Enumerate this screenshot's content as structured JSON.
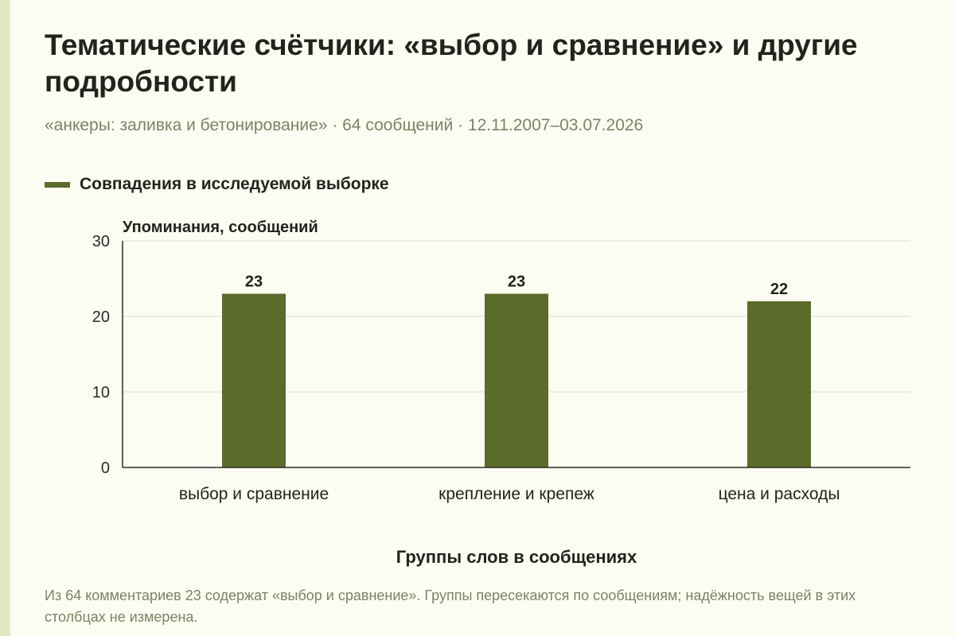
{
  "title": "Тематические счётчики: «выбор и сравнение» и другие подробности",
  "subtitle": "«анкеры: заливка и бетонирование» · 64 сообщений · 12.11.2007–03.07.2026",
  "footnote": "Из 64 комментариев 23 содержат «выбор и сравнение». Группы пересекаются по сообщениям; надёжность вещей в этих столбцах не измерена.",
  "colors": {
    "bar": "#5b6b2a",
    "grid": "#dadad0",
    "axis": "#2b2b26",
    "background": "#fdfcf2"
  },
  "chart_data": {
    "type": "bar",
    "categories": [
      "выбор и сравнение",
      "крепление и крепеж",
      "цена и расходы"
    ],
    "series": [
      {
        "name": "Совпадения в исследуемой выборке",
        "values": [
          23,
          23,
          22
        ]
      }
    ],
    "ylabel": "Упоминания, сообщений",
    "xlabel": "Группы слов в сообщениях",
    "ylim": [
      0,
      30
    ],
    "yticks": [
      0,
      10,
      20,
      30
    ],
    "data_labels": [
      "23",
      "23",
      "22"
    ],
    "grid": true,
    "legend_position": "top-left"
  }
}
